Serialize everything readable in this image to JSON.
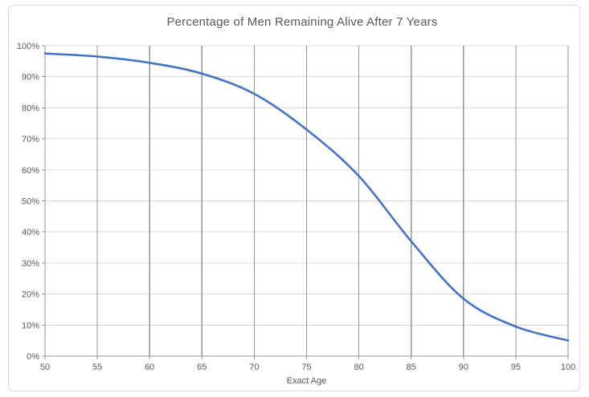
{
  "chart_data": {
    "type": "line",
    "title": "Percentage of Men Remaining Alive After 7 Years",
    "xlabel": "Exact Age",
    "ylabel": "",
    "x": [
      50,
      55,
      60,
      65,
      70,
      75,
      80,
      85,
      90,
      95,
      100
    ],
    "series": [
      {
        "name": "Percentage of men remaining alive",
        "values": [
          97.5,
          96.5,
          94.5,
          91,
          84.5,
          73,
          58,
          37,
          18.5,
          9.5,
          5
        ]
      }
    ],
    "xlim": [
      50,
      100
    ],
    "ylim": [
      0,
      100
    ],
    "x_tick_labels": [
      "50",
      "55",
      "60",
      "65",
      "70",
      "75",
      "80",
      "85",
      "90",
      "95",
      "100"
    ],
    "y_tick_values": [
      0,
      10,
      20,
      30,
      40,
      50,
      60,
      70,
      80,
      90,
      100
    ],
    "y_tick_labels": [
      "0%",
      "10%",
      "20%",
      "30%",
      "40%",
      "50%",
      "60%",
      "70%",
      "80%",
      "90%",
      "100%"
    ],
    "grid": {
      "vertical": true,
      "horizontal": true
    },
    "legend": "none",
    "smooth_line": true
  },
  "colors": {
    "series_line": "#4472C4",
    "vertical_gridline": "#949494",
    "horizontal_gridline": "#D9D9D9",
    "axis_line": "#949494",
    "text": "#595959",
    "chart_border": "#D9D9D9",
    "background": "#FFFFFF"
  }
}
